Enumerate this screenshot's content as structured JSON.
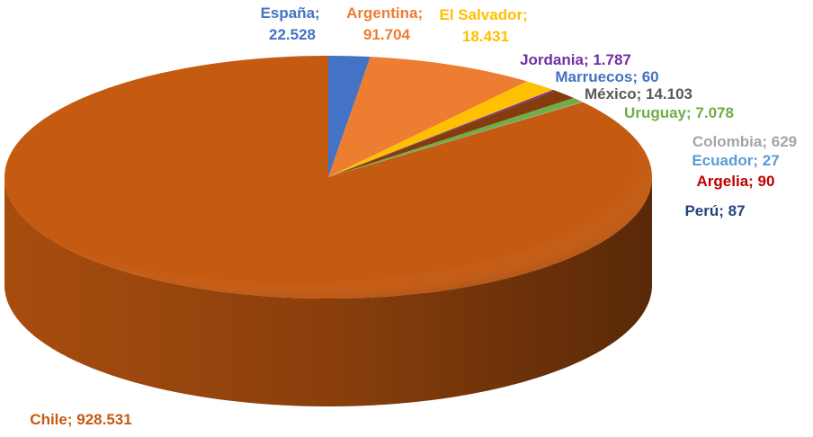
{
  "chart_data": {
    "type": "pie3d",
    "categories": [
      "España",
      "Argentina",
      "El Salvador",
      "Jordania",
      "Marruecos",
      "México",
      "Uruguay",
      "Colombia",
      "Ecuador",
      "Argelia",
      "Perú",
      "Chile"
    ],
    "values": [
      22528,
      91704,
      18431,
      1787,
      60,
      14103,
      7078,
      629,
      27,
      90,
      87,
      928531
    ],
    "value_labels": [
      "22.528",
      "91.704",
      "18.431",
      "1.787",
      "60",
      "14.103",
      "7.078",
      "629",
      "27",
      "90",
      "87",
      "928.531"
    ],
    "label_separator": "; ",
    "colors": [
      "#4472c4",
      "#ed7d31",
      "#ffc000",
      "#7030a0",
      "#4472c4",
      "#843c0c",
      "#70ad47",
      "#a5a5a5",
      "#5b9bd5",
      "#c00000",
      "#264478",
      "#c55a11"
    ],
    "label_colors": [
      "#4472c4",
      "#ed7d31",
      "#ffc000",
      "#7030a0",
      "#4472c4",
      "#595959",
      "#70ad47",
      "#a5a5a5",
      "#5b9bd5",
      "#c00000",
      "#264478",
      "#c55a11"
    ]
  }
}
